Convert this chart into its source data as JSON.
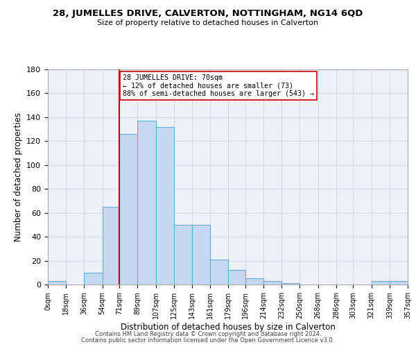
{
  "title": "28, JUMELLES DRIVE, CALVERTON, NOTTINGHAM, NG14 6QD",
  "subtitle": "Size of property relative to detached houses in Calverton",
  "xlabel": "Distribution of detached houses by size in Calverton",
  "ylabel": "Number of detached properties",
  "bin_edges": [
    0,
    18,
    36,
    54,
    71,
    89,
    107,
    125,
    143,
    161,
    179,
    196,
    214,
    232,
    250,
    268,
    286,
    303,
    321,
    339,
    357
  ],
  "bar_heights": [
    3,
    0,
    10,
    65,
    126,
    137,
    132,
    50,
    50,
    21,
    12,
    5,
    3,
    1,
    0,
    0,
    0,
    0,
    3,
    3
  ],
  "bar_color": "#c5d8f0",
  "bar_edge_color": "#6aaad4",
  "bar_edge_width": 0.8,
  "grid_color": "#d0d8e8",
  "background_color": "#eef2f8",
  "vline_x": 71,
  "vline_color": "#cc0000",
  "annotation_line1": "28 JUMELLES DRIVE: 70sqm",
  "annotation_line2": "← 12% of detached houses are smaller (73)",
  "annotation_line3": "88% of semi-detached houses are larger (543) →",
  "annotation_box_color": "#ffffff",
  "annotation_box_edgecolor": "#cc0000",
  "ylim": [
    0,
    180
  ],
  "yticks": [
    0,
    20,
    40,
    60,
    80,
    100,
    120,
    140,
    160,
    180
  ],
  "tick_labels": [
    "0sqm",
    "18sqm",
    "36sqm",
    "54sqm",
    "71sqm",
    "89sqm",
    "107sqm",
    "125sqm",
    "143sqm",
    "161sqm",
    "179sqm",
    "196sqm",
    "214sqm",
    "232sqm",
    "250sqm",
    "268sqm",
    "286sqm",
    "303sqm",
    "321sqm",
    "339sqm",
    "357sqm"
  ],
  "footer_line1": "Contains HM Land Registry data © Crown copyright and database right 2024.",
  "footer_line2": "Contains public sector information licensed under the Open Government Licence v3.0."
}
